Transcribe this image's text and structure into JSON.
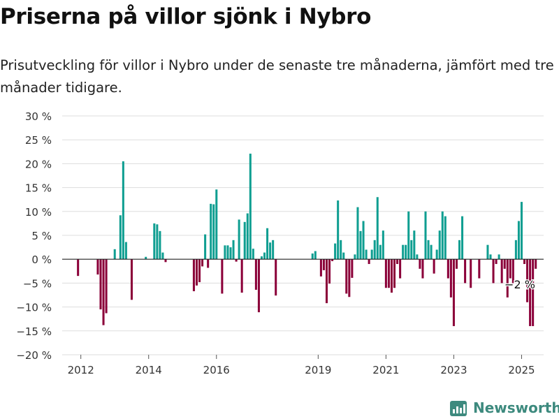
{
  "title": "Priserna på villor sjönk i Nybro",
  "subtitle": "Prisutveckling för villor i Nybro under de senaste tre månaderna, jämfört med tre månader tidigare.",
  "brand": "Newsworthy",
  "colors": {
    "positive": "#0f9e91",
    "negative": "#8b0039",
    "grid": "#dddddd",
    "zero": "#222222",
    "brand": "#3d8a7e"
  },
  "chart_data": {
    "type": "bar",
    "title": "Priserna på villor sjönk i Nybro",
    "subtitle": "Prisutveckling för villor i Nybro under de senaste tre månaderna, jämfört med tre månader tidigare.",
    "xlabel": "",
    "ylabel": "",
    "ylim": [
      -20,
      30
    ],
    "yticks": [
      30,
      25,
      20,
      15,
      10,
      5,
      0,
      -5,
      -10,
      -15,
      -20
    ],
    "ytick_labels": [
      "30 %",
      "25 %",
      "20 %",
      "15 %",
      "10 %",
      "5 %",
      "0 %",
      "−5 %",
      "−10 %",
      "−15 %",
      "−20 %"
    ],
    "xticks": [
      2012,
      2014,
      2016,
      2019,
      2021,
      2023,
      2025
    ],
    "xtick_labels": [
      "2012",
      "2014",
      "2016",
      "2019",
      "2021",
      "2023",
      "2025"
    ],
    "grid": true,
    "annotation": {
      "text": "−2 %",
      "year": 2024.99,
      "value": -2
    },
    "series": [
      {
        "start_year": 2011.917,
        "points_per_year": 12,
        "values": [
          -3.5,
          null,
          null,
          null,
          null,
          null,
          null,
          -3.2,
          -10.5,
          -13.8,
          -11.3,
          null,
          null,
          2.1,
          null,
          9.2,
          20.5,
          3.6,
          null,
          -8.5,
          null,
          null,
          null,
          null,
          0.5,
          null,
          null,
          7.5,
          7.3,
          5.9,
          1.4,
          -0.6,
          null,
          null,
          null,
          null,
          null,
          null,
          null,
          null,
          null,
          -6.7,
          -5.5,
          -4.8,
          -1.5,
          5.2,
          -1.8,
          11.6,
          11.5,
          14.6,
          null,
          -7.2,
          2.9,
          2.9,
          2.5,
          4.0,
          -0.5,
          8.3,
          -7.0,
          7.8,
          9.6,
          22.1,
          2.2,
          -6.4,
          -11.1,
          0.6,
          1.4,
          6.5,
          3.5,
          4.0,
          -7.6,
          null,
          null,
          null,
          null,
          null,
          null,
          null,
          null,
          null,
          null,
          null,
          null,
          1.2,
          1.7,
          null,
          -3.6,
          -2.3,
          -9.2,
          -5.1,
          -0.4,
          3.3,
          12.3,
          4.0,
          1.4,
          -7.2,
          -7.9,
          -3.9,
          1.0,
          10.9,
          5.9,
          8.0,
          2.0,
          -1.0,
          2.0,
          4.0,
          13.0,
          3.0,
          6.0,
          -6.0,
          -6.0,
          -7.0,
          -6.0,
          -1.0,
          -4.0,
          3.0,
          3.0,
          10.0,
          4.0,
          6.0,
          1.0,
          -2.0,
          -4.0,
          10.0,
          4.0,
          3.0,
          -3.0,
          2.0,
          6.0,
          10.0,
          9.0,
          -4.0,
          -8.0,
          -14.0,
          -2.0,
          4.0,
          9.0,
          -5.0,
          null,
          -6.0,
          null,
          null,
          -4.0,
          null,
          null,
          3.0,
          1.0,
          -5.0,
          -1.0,
          1.0,
          -5.0,
          -2.0,
          -8.0,
          -4.0,
          -5.0,
          4.0,
          8.0,
          12.0,
          -1.0,
          -9.0,
          -14.0,
          -14.0,
          -2.0
        ]
      }
    ]
  }
}
